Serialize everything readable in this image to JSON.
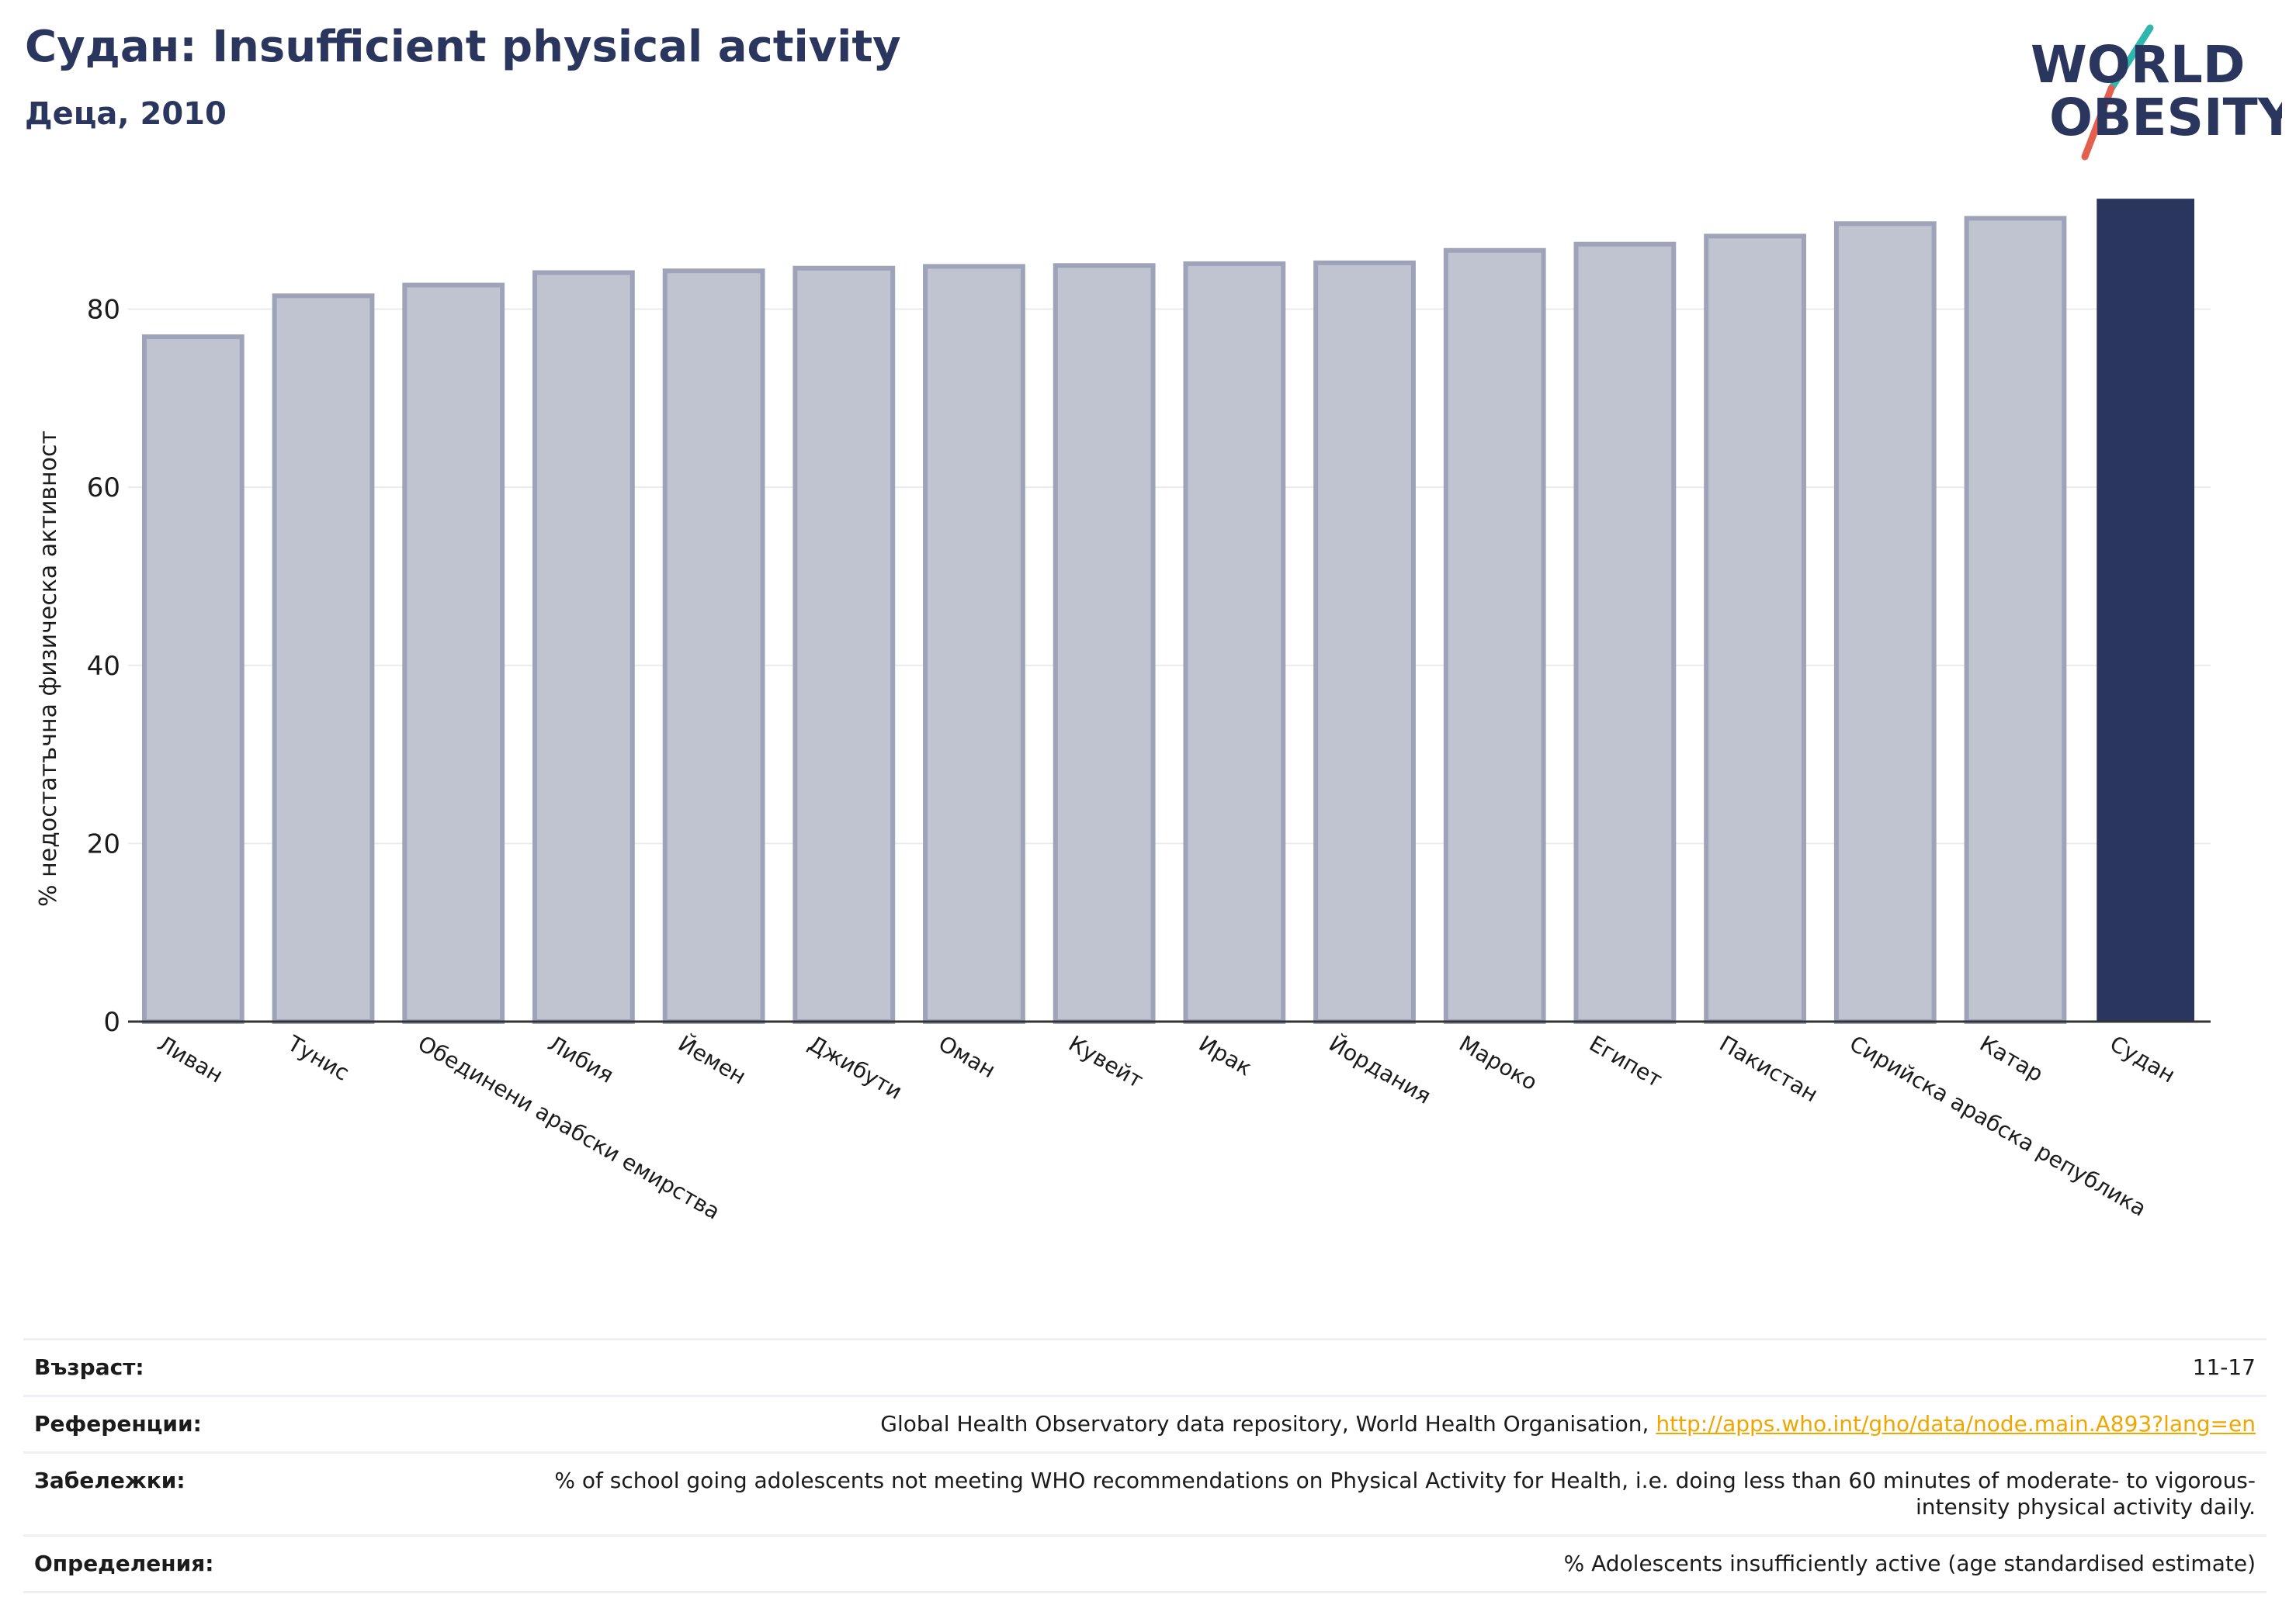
{
  "header": {
    "title": "Судан: Insufficient physical activity",
    "subtitle": "Деца, 2010"
  },
  "logo": {
    "line1": "WORLD",
    "line2": "OBESITY",
    "text_color": "#2b365f",
    "slash_top_color": "#2fb7ad",
    "slash_bottom_color": "#e4604e"
  },
  "colors": {
    "bar_fill": "#c0c3d0",
    "bar_stroke": "#9ea3ba",
    "highlight": "#2b365f",
    "grid": "#ebebeb",
    "axis": "#333333"
  },
  "chart_data": {
    "type": "bar",
    "ylabel": "% недостатъчна физическа активност",
    "ylim": [
      0,
      92.5
    ],
    "yticks": [
      0,
      20,
      40,
      60,
      80
    ],
    "grid": true,
    "highlight_category": "Судан",
    "categories": [
      "Ливан",
      "Тунис",
      "Обединени арабски емирства",
      "Либия",
      "Йемен",
      "Джибути",
      "Оман",
      "Кувейт",
      "Ирак",
      "Йордания",
      "Мароко",
      "Египет",
      "Пакистан",
      "Сирийска арабска република",
      "Катар",
      "Судан"
    ],
    "values": [
      76.9,
      81.5,
      82.7,
      84.1,
      84.3,
      84.6,
      84.8,
      84.9,
      85.1,
      85.2,
      86.6,
      87.3,
      88.2,
      89.6,
      90.2,
      92.4
    ]
  },
  "meta": [
    {
      "label": "Възраст:",
      "value": "11-17"
    },
    {
      "label": "Референции:",
      "value": "Global Health Observatory data repository, World Health Organisation, ",
      "link": "http://apps.who.int/gho/data/node.main.A893?lang=en"
    },
    {
      "label": "Забележки:",
      "value": "% of school going adolescents not meeting WHO recommendations on Physical Activity for Health, i.e. doing less than 60 minutes of moderate- to vigorous-intensity physical activity daily."
    },
    {
      "label": "Определения:",
      "value": "% Adolescents insufficiently active (age standardised estimate)"
    }
  ]
}
